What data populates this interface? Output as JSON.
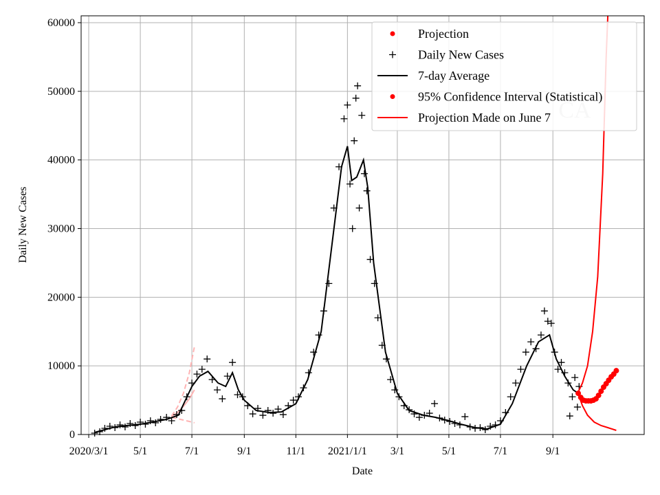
{
  "chart_data": {
    "type": "line",
    "xlabel": "Date",
    "ylabel": "Daily New Cases",
    "watermark": "CA",
    "x_range": [
      "2020-02-21",
      "2021-12-18"
    ],
    "ylim": [
      0,
      61000
    ],
    "grid": true,
    "legend_position": "top-right",
    "x_ticks": [
      {
        "date": "2020-03-01",
        "label": "2020/3/1"
      },
      {
        "date": "2020-05-01",
        "label": "5/1"
      },
      {
        "date": "2020-07-01",
        "label": "7/1"
      },
      {
        "date": "2020-09-01",
        "label": "9/1"
      },
      {
        "date": "2020-11-01",
        "label": "11/1"
      },
      {
        "date": "2021-01-01",
        "label": "2021/1/1"
      },
      {
        "date": "2021-03-01",
        "label": "3/1"
      },
      {
        "date": "2021-05-01",
        "label": "5/1"
      },
      {
        "date": "2021-07-01",
        "label": "7/1"
      },
      {
        "date": "2021-09-01",
        "label": "9/1"
      }
    ],
    "y_ticks": [
      0,
      10000,
      20000,
      30000,
      40000,
      50000,
      60000
    ],
    "legend": [
      {
        "label": "Projection",
        "marker": "dot",
        "color": "#ff0000"
      },
      {
        "label": "Daily New Cases",
        "marker": "plus",
        "color": "#000000"
      },
      {
        "label": "7-day Average",
        "marker": "line",
        "color": "#000000"
      },
      {
        "label": "95% Confidence Interval (Statistical)",
        "marker": "dot",
        "color": "#ff0000"
      },
      {
        "label": "Projection Made on June 7",
        "marker": "line",
        "color": "#ff0000"
      }
    ],
    "colors": {
      "cases": "#000000",
      "average": "#000000",
      "projection": "#ff0000",
      "old_projection": "#ffb3b3",
      "grid": "#b0b0b0"
    },
    "series": [
      {
        "name": "7-day Average",
        "points": [
          [
            "2020-03-08",
            300
          ],
          [
            "2020-03-20",
            700
          ],
          [
            "2020-04-01",
            1100
          ],
          [
            "2020-04-15",
            1300
          ],
          [
            "2020-05-01",
            1500
          ],
          [
            "2020-05-15",
            1800
          ],
          [
            "2020-06-01",
            2200
          ],
          [
            "2020-06-15",
            2800
          ],
          [
            "2020-07-01",
            7000
          ],
          [
            "2020-07-10",
            8500
          ],
          [
            "2020-07-20",
            9200
          ],
          [
            "2020-08-01",
            7500
          ],
          [
            "2020-08-10",
            7000
          ],
          [
            "2020-08-18",
            9000
          ],
          [
            "2020-08-25",
            6500
          ],
          [
            "2020-09-01",
            5000
          ],
          [
            "2020-09-15",
            3500
          ],
          [
            "2020-10-01",
            3200
          ],
          [
            "2020-10-15",
            3300
          ],
          [
            "2020-11-01",
            4500
          ],
          [
            "2020-11-15",
            8000
          ],
          [
            "2020-12-01",
            15000
          ],
          [
            "2020-12-15",
            29000
          ],
          [
            "2020-12-25",
            39000
          ],
          [
            "2021-01-01",
            42000
          ],
          [
            "2021-01-06",
            37000
          ],
          [
            "2021-01-12",
            37500
          ],
          [
            "2021-01-20",
            40000
          ],
          [
            "2021-01-25",
            36000
          ],
          [
            "2021-02-01",
            25000
          ],
          [
            "2021-02-15",
            12000
          ],
          [
            "2021-03-01",
            6000
          ],
          [
            "2021-03-15",
            3500
          ],
          [
            "2021-04-01",
            2800
          ],
          [
            "2021-04-15",
            2500
          ],
          [
            "2021-05-01",
            2000
          ],
          [
            "2021-05-15",
            1500
          ],
          [
            "2021-06-01",
            1000
          ],
          [
            "2021-06-15",
            800
          ],
          [
            "2021-07-01",
            1500
          ],
          [
            "2021-07-15",
            4500
          ],
          [
            "2021-08-01",
            10000
          ],
          [
            "2021-08-15",
            13500
          ],
          [
            "2021-08-28",
            14500
          ],
          [
            "2021-09-05",
            11000
          ],
          [
            "2021-09-15",
            8500
          ],
          [
            "2021-09-25",
            6500
          ],
          [
            "2021-10-01",
            6000
          ]
        ]
      },
      {
        "name": "Daily New Cases",
        "points": [
          [
            "2020-03-08",
            200
          ],
          [
            "2020-03-14",
            400
          ],
          [
            "2020-03-20",
            900
          ],
          [
            "2020-03-26",
            1200
          ],
          [
            "2020-04-01",
            1000
          ],
          [
            "2020-04-07",
            1400
          ],
          [
            "2020-04-13",
            1100
          ],
          [
            "2020-04-19",
            1600
          ],
          [
            "2020-04-25",
            1300
          ],
          [
            "2020-05-01",
            1800
          ],
          [
            "2020-05-07",
            1500
          ],
          [
            "2020-05-13",
            2000
          ],
          [
            "2020-05-19",
            1700
          ],
          [
            "2020-05-25",
            2200
          ],
          [
            "2020-06-01",
            2500
          ],
          [
            "2020-06-07",
            2000
          ],
          [
            "2020-06-13",
            2900
          ],
          [
            "2020-06-19",
            3500
          ],
          [
            "2020-06-25",
            5500
          ],
          [
            "2020-07-01",
            7500
          ],
          [
            "2020-07-07",
            8800
          ],
          [
            "2020-07-13",
            9500
          ],
          [
            "2020-07-19",
            11000
          ],
          [
            "2020-07-25",
            8000
          ],
          [
            "2020-07-31",
            6500
          ],
          [
            "2020-08-06",
            5200
          ],
          [
            "2020-08-12",
            8500
          ],
          [
            "2020-08-18",
            10500
          ],
          [
            "2020-08-24",
            5800
          ],
          [
            "2020-08-30",
            5500
          ],
          [
            "2020-09-05",
            4200
          ],
          [
            "2020-09-11",
            3000
          ],
          [
            "2020-09-17",
            3800
          ],
          [
            "2020-09-23",
            2800
          ],
          [
            "2020-09-29",
            3500
          ],
          [
            "2020-10-05",
            3100
          ],
          [
            "2020-10-11",
            3700
          ],
          [
            "2020-10-17",
            2900
          ],
          [
            "2020-10-23",
            4200
          ],
          [
            "2020-10-29",
            5000
          ],
          [
            "2020-11-04",
            5500
          ],
          [
            "2020-11-10",
            6800
          ],
          [
            "2020-11-16",
            9000
          ],
          [
            "2020-11-22",
            12000
          ],
          [
            "2020-11-28",
            14500
          ],
          [
            "2020-12-04",
            18000
          ],
          [
            "2020-12-10",
            22000
          ],
          [
            "2020-12-16",
            33000
          ],
          [
            "2020-12-22",
            39000
          ],
          [
            "2020-12-28",
            46000
          ],
          [
            "2021-01-01",
            48000
          ],
          [
            "2021-01-04",
            36500
          ],
          [
            "2021-01-07",
            30000
          ],
          [
            "2021-01-09",
            42800
          ],
          [
            "2021-01-11",
            49000
          ],
          [
            "2021-01-13",
            50800
          ],
          [
            "2021-01-15",
            33000
          ],
          [
            "2021-01-18",
            46500
          ],
          [
            "2021-01-21",
            38000
          ],
          [
            "2021-01-24",
            35500
          ],
          [
            "2021-01-28",
            25500
          ],
          [
            "2021-02-02",
            22000
          ],
          [
            "2021-02-06",
            17000
          ],
          [
            "2021-02-11",
            13000
          ],
          [
            "2021-02-16",
            11000
          ],
          [
            "2021-02-21",
            8000
          ],
          [
            "2021-02-26",
            6500
          ],
          [
            "2021-03-03",
            5500
          ],
          [
            "2021-03-09",
            4200
          ],
          [
            "2021-03-15",
            3600
          ],
          [
            "2021-03-21",
            3000
          ],
          [
            "2021-03-27",
            2500
          ],
          [
            "2021-04-02",
            2800
          ],
          [
            "2021-04-08",
            3100
          ],
          [
            "2021-04-14",
            4500
          ],
          [
            "2021-04-20",
            2400
          ],
          [
            "2021-04-26",
            2100
          ],
          [
            "2021-05-02",
            1900
          ],
          [
            "2021-05-08",
            1600
          ],
          [
            "2021-05-14",
            1400
          ],
          [
            "2021-05-20",
            2600
          ],
          [
            "2021-05-26",
            1100
          ],
          [
            "2021-06-01",
            900
          ],
          [
            "2021-06-07",
            1000
          ],
          [
            "2021-06-13",
            700
          ],
          [
            "2021-06-19",
            1200
          ],
          [
            "2021-06-25",
            1400
          ],
          [
            "2021-07-01",
            2000
          ],
          [
            "2021-07-07",
            3200
          ],
          [
            "2021-07-13",
            5500
          ],
          [
            "2021-07-19",
            7500
          ],
          [
            "2021-07-25",
            9500
          ],
          [
            "2021-07-31",
            12000
          ],
          [
            "2021-08-06",
            13500
          ],
          [
            "2021-08-12",
            12500
          ],
          [
            "2021-08-18",
            14500
          ],
          [
            "2021-08-22",
            18000
          ],
          [
            "2021-08-26",
            16500
          ],
          [
            "2021-08-30",
            16200
          ],
          [
            "2021-09-03",
            12000
          ],
          [
            "2021-09-07",
            9500
          ],
          [
            "2021-09-11",
            10500
          ],
          [
            "2021-09-15",
            9000
          ],
          [
            "2021-09-19",
            7500
          ],
          [
            "2021-09-21",
            2700
          ],
          [
            "2021-09-24",
            5500
          ],
          [
            "2021-09-27",
            8300
          ],
          [
            "2021-09-30",
            4000
          ],
          [
            "2021-10-02",
            7000
          ]
        ]
      },
      {
        "name": "Projection",
        "points": [
          [
            "2021-10-01",
            6000
          ],
          [
            "2021-10-04",
            5400
          ],
          [
            "2021-10-07",
            5000
          ],
          [
            "2021-10-10",
            4900
          ],
          [
            "2021-10-13",
            4900
          ],
          [
            "2021-10-16",
            4900
          ],
          [
            "2021-10-19",
            5000
          ],
          [
            "2021-10-22",
            5200
          ],
          [
            "2021-10-25",
            5700
          ],
          [
            "2021-10-28",
            6300
          ],
          [
            "2021-10-31",
            6900
          ],
          [
            "2021-11-03",
            7400
          ],
          [
            "2021-11-06",
            7900
          ],
          [
            "2021-11-09",
            8400
          ],
          [
            "2021-11-12",
            8800
          ],
          [
            "2021-11-15",
            9300
          ]
        ]
      },
      {
        "name": "95% Confidence Interval (Statistical)",
        "upper": [
          [
            "2021-10-01",
            6200
          ],
          [
            "2021-10-06",
            7500
          ],
          [
            "2021-10-12",
            10000
          ],
          [
            "2021-10-18",
            15000
          ],
          [
            "2021-10-24",
            23000
          ],
          [
            "2021-10-30",
            38000
          ],
          [
            "2021-11-03",
            55000
          ],
          [
            "2021-11-05",
            61000
          ]
        ],
        "lower": [
          [
            "2021-10-01",
            5900
          ],
          [
            "2021-10-06",
            4200
          ],
          [
            "2021-10-12",
            2800
          ],
          [
            "2021-10-20",
            1800
          ],
          [
            "2021-10-28",
            1300
          ],
          [
            "2021-11-05",
            1000
          ],
          [
            "2021-11-15",
            600
          ]
        ]
      },
      {
        "name": "Projection Made on June 7",
        "points": [
          [
            "2020-06-07",
            2600
          ],
          [
            "2020-06-14",
            3200
          ],
          [
            "2020-06-21",
            4100
          ],
          [
            "2020-06-28",
            5200
          ],
          [
            "2020-07-04",
            6500
          ]
        ],
        "upper": [
          [
            "2020-06-07",
            2700
          ],
          [
            "2020-06-14",
            4000
          ],
          [
            "2020-06-21",
            6000
          ],
          [
            "2020-06-28",
            9000
          ],
          [
            "2020-07-04",
            12800
          ]
        ],
        "lower": [
          [
            "2020-06-07",
            2500
          ],
          [
            "2020-06-14",
            2300
          ],
          [
            "2020-06-21",
            2100
          ],
          [
            "2020-06-28",
            1900
          ],
          [
            "2020-07-04",
            1700
          ]
        ]
      }
    ]
  }
}
